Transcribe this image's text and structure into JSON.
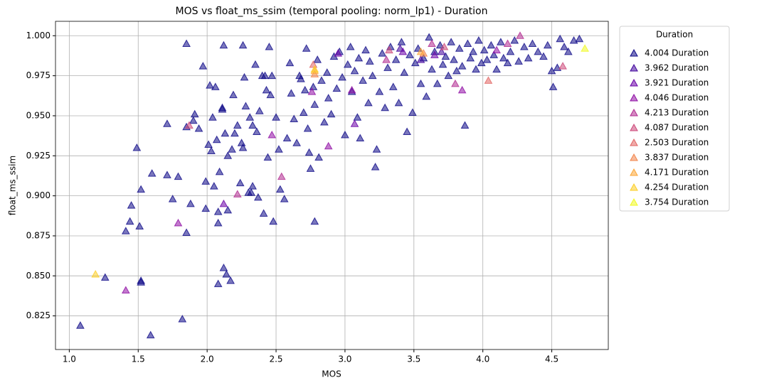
{
  "chart_data": {
    "type": "scatter",
    "title": "MOS vs float_ms_ssim (temporal pooling: norm_lp1) - Duration",
    "x_label": "MOS",
    "y_label": "float_ms_ssim",
    "legend_title": "Duration",
    "legend_position": "outside-right",
    "grid": true,
    "xlim": [
      0.9,
      4.91
    ],
    "ylim": [
      0.804,
      1.009
    ],
    "xticks": [
      {
        "value": 1,
        "label": "1.0"
      },
      1.5,
      {
        "value": 2,
        "label": "2.0"
      },
      2.5,
      {
        "value": 3,
        "label": "3.0"
      },
      3.5,
      {
        "value": 4,
        "label": "4.0"
      },
      4.5
    ],
    "yticks": [
      {
        "value": 0.825,
        "label": "0.825"
      },
      {
        "value": 0.85,
        "label": "0.850"
      },
      {
        "value": 0.875,
        "label": "0.875"
      },
      {
        "value": 0.9,
        "label": "0.900"
      },
      {
        "value": 0.925,
        "label": "0.925"
      },
      {
        "value": 0.95,
        "label": "0.950"
      },
      {
        "value": 0.975,
        "label": "0.975"
      },
      {
        "value": 1,
        "label": "1.000"
      }
    ],
    "series": [
      {
        "name": "4.004 Duration",
        "color": "#0d0887",
        "x": [
          1.08,
          1.26,
          1.41,
          1.44,
          1.45,
          1.49,
          1.51,
          1.52,
          1.52,
          1.52,
          1.59,
          1.6,
          1.71,
          1.71,
          1.75,
          1.79,
          1.82,
          1.85,
          1.85,
          1.85,
          1.88,
          1.9,
          1.91,
          1.94,
          1.97,
          1.99,
          1.99,
          2.01,
          2.02,
          2.03,
          2.04,
          2.05,
          2.06,
          2.07,
          2.08,
          2.08,
          2.08,
          2.09,
          2.11,
          2.11,
          2.12,
          2.12,
          2.13,
          2.14,
          2.15,
          2.15,
          2.17,
          2.18,
          2.19,
          2.2,
          2.22,
          2.24,
          2.25,
          2.26,
          2.26,
          2.27,
          2.28,
          2.3,
          2.31,
          2.32,
          2.33,
          2.33,
          2.35,
          2.36,
          2.37,
          2.38,
          2.4,
          2.41,
          2.42,
          2.43,
          2.44,
          2.45,
          2.46,
          2.47,
          2.48,
          2.5,
          2.52,
          2.53,
          2.56,
          2.58,
          2.6,
          2.61,
          2.63,
          2.65,
          2.67,
          2.68,
          2.7,
          2.71,
          2.72,
          2.73,
          2.74,
          2.75,
          2.77,
          2.78,
          2.78,
          2.8,
          2.81,
          2.83,
          2.85,
          2.87,
          2.88,
          2.9,
          2.92,
          2.94,
          2.96,
          2.98,
          3.0,
          3.02,
          3.04,
          3.05,
          3.07,
          3.09,
          3.1,
          3.11,
          3.13,
          3.15,
          3.17,
          3.18,
          3.2,
          3.22,
          3.23,
          3.25,
          3.27,
          3.29,
          3.31,
          3.33,
          3.35,
          3.37,
          3.39,
          3.41,
          3.43,
          3.45,
          3.47,
          3.49,
          3.51,
          3.53,
          3.55,
          3.57,
          3.59,
          3.61,
          3.63,
          3.65,
          3.67,
          3.69,
          3.71,
          3.73,
          3.75,
          3.77,
          3.79,
          3.81,
          3.83,
          3.85,
          3.87,
          3.89,
          3.91,
          3.93,
          3.95,
          3.97,
          3.99,
          4.01,
          4.03,
          4.06,
          4.08,
          4.1,
          4.13,
          4.15,
          4.18,
          4.2,
          4.23,
          4.26,
          4.3,
          4.33,
          4.36,
          4.4,
          4.44,
          4.47,
          4.5,
          4.51,
          4.54,
          4.56,
          4.59,
          4.62,
          4.66,
          4.7
        ],
        "values": [
          0.819,
          0.849,
          0.878,
          0.884,
          0.894,
          0.93,
          0.881,
          0.904,
          0.847,
          0.846,
          0.813,
          0.914,
          0.945,
          0.913,
          0.898,
          0.912,
          0.823,
          0.877,
          0.943,
          0.995,
          0.895,
          0.947,
          0.951,
          0.942,
          0.981,
          0.892,
          0.909,
          0.932,
          0.969,
          0.928,
          0.949,
          0.906,
          0.968,
          0.935,
          0.845,
          0.883,
          0.89,
          0.915,
          0.955,
          0.954,
          0.855,
          0.994,
          0.939,
          0.851,
          0.891,
          0.925,
          0.847,
          0.929,
          0.963,
          0.939,
          0.944,
          0.908,
          0.933,
          0.93,
          0.994,
          0.974,
          0.956,
          0.902,
          0.949,
          0.902,
          0.906,
          0.944,
          0.982,
          0.94,
          0.899,
          0.953,
          0.975,
          0.889,
          0.975,
          0.966,
          0.924,
          0.993,
          0.963,
          0.975,
          0.884,
          0.949,
          0.929,
          0.904,
          0.898,
          0.936,
          0.983,
          0.964,
          0.948,
          0.933,
          0.975,
          0.973,
          0.952,
          0.966,
          0.992,
          0.942,
          0.927,
          0.917,
          0.968,
          0.884,
          0.957,
          0.985,
          0.924,
          0.972,
          0.946,
          0.977,
          0.961,
          0.951,
          0.987,
          0.967,
          0.99,
          0.974,
          0.938,
          0.982,
          0.993,
          0.965,
          0.978,
          0.949,
          0.986,
          0.936,
          0.972,
          0.991,
          0.958,
          0.984,
          0.975,
          0.918,
          0.929,
          0.965,
          0.989,
          0.955,
          0.98,
          0.993,
          0.968,
          0.985,
          0.958,
          0.996,
          0.977,
          0.94,
          0.988,
          0.952,
          0.983,
          0.992,
          0.97,
          0.986,
          0.962,
          0.999,
          0.979,
          0.99,
          0.97,
          0.994,
          0.982,
          0.987,
          0.975,
          0.996,
          0.985,
          0.978,
          0.992,
          0.981,
          0.944,
          0.995,
          0.986,
          0.99,
          0.979,
          0.997,
          0.983,
          0.991,
          0.985,
          0.994,
          0.988,
          0.979,
          0.996,
          0.986,
          0.983,
          0.99,
          0.997,
          0.984,
          0.993,
          0.986,
          0.995,
          0.99,
          0.987,
          0.994,
          0.978,
          0.968,
          0.98,
          0.998,
          0.993,
          0.99,
          0.997,
          0.998
        ]
      },
      {
        "name": "3.962 Duration",
        "color": "#41049d",
        "x": [
          3.4,
          3.55,
          3.7
        ],
        "values": [
          0.992,
          0.985,
          0.99
        ]
      },
      {
        "name": "3.921 Duration",
        "color": "#6a00a8",
        "x": [
          2.12,
          2.95,
          3.07,
          3.42,
          3.65
        ],
        "values": [
          0.895,
          0.989,
          0.945,
          0.99,
          0.988
        ]
      },
      {
        "name": "4.046 Duration",
        "color": "#8f0da4",
        "x": [
          1.41,
          1.79,
          2.47,
          2.76,
          2.88,
          3.05,
          3.85,
          4.1
        ],
        "values": [
          0.841,
          0.883,
          0.938,
          0.965,
          0.931,
          0.966,
          0.966,
          0.991
        ]
      },
      {
        "name": "4.213 Duration",
        "color": "#b12a90",
        "x": [
          2.22,
          2.54,
          3.3,
          3.63,
          3.8,
          4.18,
          4.27
        ],
        "values": [
          0.901,
          0.912,
          0.985,
          0.995,
          0.97,
          0.995,
          1.0
        ]
      },
      {
        "name": "4.087 Duration",
        "color": "#cc4778",
        "x": [
          1.87,
          3.32,
          4.58,
          3.72
        ],
        "values": [
          0.944,
          0.991,
          0.981,
          0.993
        ]
      },
      {
        "name": "2.503 Duration",
        "color": "#e16462",
        "x": [
          2.77,
          4.04
        ],
        "values": [
          0.982,
          0.972
        ]
      },
      {
        "name": "3.837 Duration",
        "color": "#f2844b",
        "x": [
          2.78,
          3.57
        ],
        "values": [
          0.976,
          0.989
        ]
      },
      {
        "name": "4.171 Duration",
        "color": "#fca636",
        "x": [
          3.55,
          2.78
        ],
        "values": [
          0.99,
          0.978
        ]
      },
      {
        "name": "4.254 Duration",
        "color": "#fcce25",
        "x": [
          1.19,
          2.78
        ],
        "values": [
          0.851,
          0.979
        ]
      },
      {
        "name": "3.754 Duration",
        "color": "#f0f921",
        "x": [
          4.74
        ],
        "values": [
          0.992
        ]
      }
    ]
  }
}
